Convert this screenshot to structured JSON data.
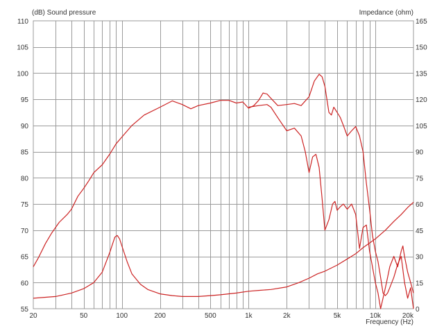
{
  "chart_data": {
    "type": "line",
    "left_axis_label": "(dB)  Sound pressure",
    "right_axis_label": "Impedance  (ohm)",
    "xlabel": "Frequency  (Hz)",
    "xscale": "log",
    "xlim": [
      20,
      20000
    ],
    "ylim_left": [
      55,
      110
    ],
    "ylim_right": [
      0,
      165
    ],
    "x_ticks": [
      {
        "value": 20,
        "label": "20"
      },
      {
        "value": 50,
        "label": "50"
      },
      {
        "value": 100,
        "label": "100"
      },
      {
        "value": 200,
        "label": "200"
      },
      {
        "value": 500,
        "label": "500"
      },
      {
        "value": 1000,
        "label": "1k"
      },
      {
        "value": 2000,
        "label": "2k"
      },
      {
        "value": 5000,
        "label": "5k"
      },
      {
        "value": 10000,
        "label": "10k"
      },
      {
        "value": 20000,
        "label": "20k"
      }
    ],
    "y_left_ticks": [
      110,
      105,
      100,
      95,
      90,
      85,
      80,
      75,
      70,
      65,
      60,
      55
    ],
    "y_right_ticks": [
      165,
      150,
      135,
      120,
      105,
      90,
      75,
      60,
      45,
      30,
      15,
      0
    ],
    "grid": true,
    "line_color": "#cc2222",
    "series": [
      {
        "axis": "left",
        "values": [
          [
            20,
            63
          ],
          [
            22,
            64.8
          ],
          [
            25,
            67.5
          ],
          [
            28,
            69.5
          ],
          [
            32,
            71.5
          ],
          [
            37,
            73
          ],
          [
            40,
            74
          ],
          [
            45,
            76.5
          ],
          [
            50,
            78
          ],
          [
            55,
            79.5
          ],
          [
            60,
            81
          ],
          [
            70,
            82.5
          ],
          [
            80,
            84.5
          ],
          [
            90,
            86.5
          ],
          [
            100,
            87.8
          ],
          [
            120,
            90
          ],
          [
            150,
            92
          ],
          [
            200,
            93.5
          ],
          [
            250,
            94.7
          ],
          [
            300,
            94
          ],
          [
            350,
            93.2
          ],
          [
            400,
            93.8
          ],
          [
            500,
            94.3
          ],
          [
            600,
            94.8
          ],
          [
            700,
            94.8
          ],
          [
            800,
            94.3
          ],
          [
            900,
            94.5
          ],
          [
            1000,
            93.3
          ],
          [
            1100,
            93.8
          ],
          [
            1200,
            94.8
          ],
          [
            1300,
            96.2
          ],
          [
            1400,
            96
          ],
          [
            1500,
            95.2
          ],
          [
            1700,
            93.8
          ],
          [
            2000,
            94
          ],
          [
            2300,
            94.2
          ],
          [
            2600,
            93.8
          ],
          [
            3000,
            95.5
          ],
          [
            3300,
            98.5
          ],
          [
            3600,
            99.8
          ],
          [
            3800,
            99.3
          ],
          [
            4000,
            97.5
          ],
          [
            4300,
            92.5
          ],
          [
            4500,
            92
          ],
          [
            4700,
            93.5
          ],
          [
            5000,
            92.5
          ],
          [
            5300,
            91.5
          ],
          [
            5600,
            90
          ],
          [
            6000,
            88
          ],
          [
            6500,
            89
          ],
          [
            7000,
            89.8
          ],
          [
            7500,
            88
          ],
          [
            8000,
            85
          ],
          [
            8500,
            79
          ],
          [
            9000,
            74
          ],
          [
            9500,
            69
          ],
          [
            10000,
            66
          ],
          [
            10500,
            64
          ],
          [
            11000,
            61
          ],
          [
            11500,
            58
          ],
          [
            12000,
            57.5
          ],
          [
            12500,
            58
          ],
          [
            13000,
            59
          ],
          [
            14000,
            61
          ],
          [
            15000,
            63.5
          ],
          [
            16000,
            65
          ],
          [
            17000,
            60
          ],
          [
            18000,
            57
          ],
          [
            19000,
            59
          ],
          [
            20000,
            55
          ]
        ]
      },
      {
        "axis": "left",
        "values": [
          [
            1000,
            93.5
          ],
          [
            1200,
            93.8
          ],
          [
            1400,
            94
          ],
          [
            1500,
            93.5
          ],
          [
            1700,
            91.5
          ],
          [
            2000,
            89
          ],
          [
            2300,
            89.5
          ],
          [
            2600,
            88
          ],
          [
            2800,
            85
          ],
          [
            3000,
            81
          ],
          [
            3200,
            84
          ],
          [
            3400,
            84.5
          ],
          [
            3600,
            82
          ],
          [
            3800,
            76
          ],
          [
            4000,
            70
          ],
          [
            4300,
            72
          ],
          [
            4600,
            75
          ],
          [
            4800,
            75.5
          ],
          [
            5000,
            73.8
          ],
          [
            5300,
            74.5
          ],
          [
            5600,
            75
          ],
          [
            6000,
            74
          ],
          [
            6500,
            75
          ],
          [
            7000,
            73
          ],
          [
            7500,
            66.5
          ],
          [
            8000,
            70.5
          ],
          [
            8500,
            71
          ],
          [
            9000,
            66
          ],
          [
            9500,
            63
          ],
          [
            10000,
            60
          ],
          [
            10500,
            58
          ],
          [
            11000,
            55
          ],
          [
            11500,
            57
          ],
          [
            12000,
            59
          ],
          [
            12500,
            61
          ],
          [
            13000,
            63
          ],
          [
            14000,
            65
          ],
          [
            15000,
            63
          ],
          [
            16000,
            66
          ],
          [
            16500,
            67
          ],
          [
            17000,
            65
          ],
          [
            18000,
            62
          ],
          [
            19000,
            60
          ],
          [
            20000,
            58
          ]
        ]
      },
      {
        "axis": "right",
        "values": [
          [
            20,
            6
          ],
          [
            30,
            7
          ],
          [
            40,
            9
          ],
          [
            50,
            11.5
          ],
          [
            60,
            15
          ],
          [
            70,
            21
          ],
          [
            80,
            32
          ],
          [
            88,
            41
          ],
          [
            92,
            42
          ],
          [
            96,
            40
          ],
          [
            100,
            36
          ],
          [
            110,
            27
          ],
          [
            120,
            20
          ],
          [
            140,
            14
          ],
          [
            160,
            11
          ],
          [
            200,
            8.5
          ],
          [
            250,
            7.5
          ],
          [
            300,
            7
          ],
          [
            400,
            7
          ],
          [
            500,
            7.5
          ],
          [
            600,
            8
          ],
          [
            800,
            9
          ],
          [
            1000,
            10
          ],
          [
            1200,
            10.5
          ],
          [
            1500,
            11
          ],
          [
            2000,
            12.5
          ],
          [
            2500,
            15
          ],
          [
            3000,
            17.5
          ],
          [
            3500,
            20
          ],
          [
            4000,
            21.5
          ],
          [
            5000,
            25
          ],
          [
            6000,
            28.5
          ],
          [
            7000,
            31.5
          ],
          [
            8000,
            35
          ],
          [
            10000,
            40
          ],
          [
            12000,
            45
          ],
          [
            14000,
            50
          ],
          [
            16000,
            54
          ],
          [
            18000,
            58
          ],
          [
            20000,
            61
          ]
        ]
      }
    ]
  }
}
